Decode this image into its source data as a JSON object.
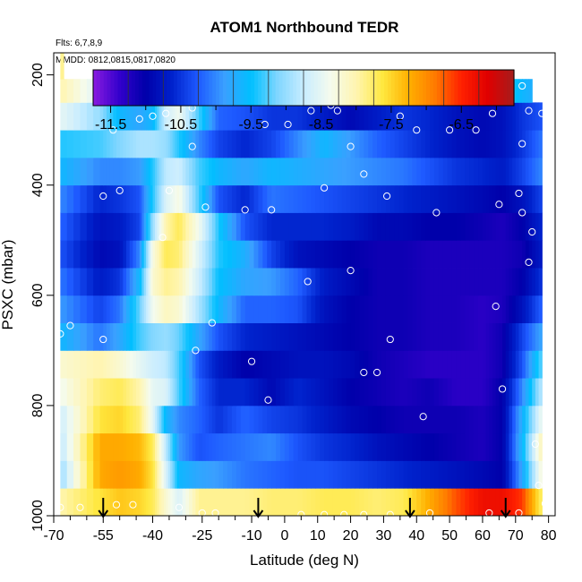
{
  "chart_data": {
    "type": "heatmap",
    "title": "ATOM1 Northbound TEDR",
    "subtitle_flights": "Flts: 6,7,8,9",
    "subtitle_dates": "MMDD: 0812,0815,0817,0820",
    "xlabel": "Latitude (deg N)",
    "ylabel": "PSXC (mbar)",
    "xlim": [
      -70,
      82
    ],
    "ylim": [
      1000,
      160
    ],
    "y_reversed": true,
    "x_ticks": [
      -70,
      -55,
      -40,
      -25,
      -10,
      0,
      10,
      20,
      30,
      40,
      50,
      60,
      70,
      80
    ],
    "x_tick_labels": [
      "-70",
      "-55",
      "-40",
      "-25",
      "-10",
      "0",
      "10",
      "20",
      "30",
      "40",
      "50",
      "60",
      "70",
      "80"
    ],
    "x_minor_ticks": [
      -65,
      -60,
      -50,
      -45,
      -35,
      -30,
      -20,
      -15,
      -5,
      5,
      15,
      25,
      35,
      45,
      55,
      65,
      75
    ],
    "y_ticks": [
      200,
      400,
      600,
      800,
      1000
    ],
    "y_tick_labels": [
      "200",
      "400",
      "600",
      "800",
      "1000"
    ],
    "colorbar": {
      "range": [
        -11.75,
        -5.75
      ],
      "ticks": [
        -11.5,
        -10.5,
        -9.5,
        -8.5,
        -7.5,
        -6.5
      ],
      "tick_labels": [
        "-11.5",
        "-10.5",
        "-9.5",
        "-8.5",
        "-7.5",
        "-6.5"
      ],
      "minor_ticks": [
        -11,
        -10,
        -9,
        -8,
        -7,
        -6
      ],
      "colors": [
        "#8a1be0",
        "#3300cc",
        "#0000aa",
        "#0022cc",
        "#1e5aff",
        "#3aa0ff",
        "#00bfff",
        "#7fd6ff",
        "#c8ecff",
        "#f4fbee",
        "#fff5b0",
        "#ffe840",
        "#ffb000",
        "#ff7a00",
        "#ff2000",
        "#e00000",
        "#a51d1d"
      ]
    },
    "levels": [
      975,
      925,
      875,
      825,
      775,
      725,
      675,
      625,
      575,
      525,
      475,
      425,
      375,
      325,
      275,
      225,
      190
    ],
    "x_grid": [
      -68,
      -56,
      -50,
      -44,
      -40,
      -36,
      -32,
      -26,
      -20,
      -12,
      -4,
      4,
      12,
      20,
      28,
      36,
      44,
      52,
      60,
      66,
      72,
      78
    ],
    "z": [
      [
        -8.0,
        -7.6,
        -7.4,
        -7.5,
        -7.7,
        -8.2,
        -8.6,
        -7.9,
        -7.9,
        -7.9,
        -7.8,
        -7.8,
        -7.7,
        -7.7,
        -7.8,
        -7.7,
        -7.2,
        -6.7,
        -6.3,
        -6.3,
        -6.6,
        -7.8
      ],
      [
        -9.0,
        -7.2,
        -7.1,
        -7.2,
        -7.6,
        -8.6,
        -9.6,
        -9.8,
        -9.9,
        -10.1,
        -10.2,
        -10.3,
        -10.3,
        -10.4,
        -10.5,
        -10.6,
        -10.7,
        -10.8,
        -10.9,
        -11.0,
        -9.8,
        -8.2
      ],
      [
        -8.8,
        -7.2,
        -7.2,
        -7.3,
        -7.7,
        -8.8,
        -9.9,
        -10.3,
        -10.2,
        -10.1,
        -10.0,
        -10.3,
        -10.5,
        -10.6,
        -10.8,
        -10.9,
        -11.0,
        -11.1,
        -11.2,
        -11.0,
        -9.6,
        -8.0
      ],
      [
        -8.7,
        -7.6,
        -7.5,
        -7.8,
        -8.5,
        -9.6,
        -10.0,
        -10.2,
        -10.5,
        -10.2,
        -10.4,
        -10.5,
        -10.7,
        -10.9,
        -11.0,
        -11.1,
        -11.1,
        -11.1,
        -11.2,
        -11.0,
        -9.7,
        -8.4
      ],
      [
        -8.4,
        -7.8,
        -7.7,
        -8.0,
        -8.5,
        -8.6,
        -9.3,
        -10.2,
        -10.6,
        -10.6,
        -10.9,
        -10.6,
        -10.8,
        -11.0,
        -11.1,
        -11.2,
        -11.1,
        -11.3,
        -11.3,
        -11.0,
        -10.0,
        -8.8
      ],
      [
        -8.2,
        -8.0,
        -8.2,
        -8.5,
        -8.7,
        -8.8,
        -9.3,
        -10.3,
        -10.7,
        -11.0,
        -10.9,
        -10.8,
        -10.8,
        -10.9,
        -11.1,
        -11.2,
        -11.3,
        -11.3,
        -11.3,
        -11.1,
        -10.3,
        -9.2
      ],
      [
        -9.6,
        -10.1,
        -9.8,
        -9.3,
        -9.1,
        -9.0,
        -9.2,
        -9.8,
        -10.3,
        -10.6,
        -10.7,
        -10.8,
        -10.9,
        -11.0,
        -11.1,
        -11.1,
        -11.2,
        -11.2,
        -11.3,
        -11.1,
        -10.4,
        -9.8
      ],
      [
        -9.9,
        -10.4,
        -10.1,
        -9.2,
        -8.4,
        -8.1,
        -8.2,
        -8.9,
        -9.6,
        -10.2,
        -10.2,
        -10.3,
        -10.8,
        -11.0,
        -11.1,
        -11.1,
        -11.2,
        -11.2,
        -11.3,
        -11.2,
        -10.8,
        -10.2
      ],
      [
        -10.1,
        -10.7,
        -10.5,
        -9.6,
        -8.2,
        -7.9,
        -8.0,
        -8.7,
        -9.5,
        -9.8,
        -9.9,
        -10.2,
        -10.7,
        -10.9,
        -11.1,
        -11.1,
        -11.2,
        -11.2,
        -11.2,
        -11.2,
        -11.0,
        -10.5
      ],
      [
        -10.3,
        -10.9,
        -10.8,
        -10.0,
        -8.3,
        -7.7,
        -7.8,
        -8.6,
        -9.4,
        -9.7,
        -10.4,
        -10.8,
        -10.9,
        -11.0,
        -11.1,
        -11.1,
        -11.2,
        -11.2,
        -11.2,
        -11.2,
        -11.1,
        -10.7
      ],
      [
        -10.2,
        -10.8,
        -10.7,
        -10.4,
        -9.0,
        -8.0,
        -7.7,
        -8.4,
        -9.4,
        -10.3,
        -10.6,
        -10.6,
        -10.6,
        -10.7,
        -10.9,
        -10.9,
        -11.0,
        -11.0,
        -11.1,
        -11.2,
        -11.0,
        -10.6
      ],
      [
        -10.0,
        -10.6,
        -10.5,
        -10.3,
        -9.4,
        -8.6,
        -8.3,
        -9.3,
        -10.3,
        -10.6,
        -10.1,
        -10.2,
        -10.3,
        -10.4,
        -10.5,
        -10.6,
        -10.7,
        -10.8,
        -10.9,
        -11.0,
        -10.8,
        -10.4
      ],
      [
        -9.6,
        -10.0,
        -10.0,
        -9.9,
        -9.4,
        -8.8,
        -8.7,
        -9.3,
        -9.6,
        -9.8,
        -9.6,
        -9.7,
        -9.8,
        -9.9,
        -10.0,
        -10.1,
        -10.3,
        -10.5,
        -10.6,
        -10.7,
        -10.4,
        -10.0
      ],
      [
        -9.4,
        -9.3,
        -9.1,
        -8.9,
        -8.9,
        -9.0,
        -9.4,
        -10.0,
        -10.4,
        -10.6,
        -10.4,
        -10.0,
        -9.6,
        -9.9,
        -10.2,
        -10.4,
        -10.6,
        -10.8,
        -10.9,
        -10.8,
        -10.5,
        -10.1
      ],
      [
        -8.5,
        -9.0,
        -9.6,
        -9.8,
        -9.6,
        -8.7,
        -8.4,
        -9.3,
        -10.2,
        -10.3,
        -10.5,
        -10.5,
        -10.7,
        -10.9,
        -10.7,
        -10.5,
        -10.6,
        -10.8,
        -10.9,
        -10.8,
        -10.5,
        -10.3
      ],
      [
        -8.0,
        -8.6,
        -9.5,
        -9.8,
        -9.2,
        -7.4,
        -7.0,
        -8.1,
        -8.4,
        -8.4,
        -8.4,
        -8.4,
        -8.5,
        -8.6,
        -8.0,
        -7.4,
        -7.6,
        -8.0,
        -8.7,
        -9.2,
        -9.6,
        -9.8
      ],
      [
        -7.9,
        -7.9,
        -7.9,
        -7.9,
        -7.9,
        -7.9,
        -7.9,
        -7.9,
        -7.9,
        -7.9,
        -7.9,
        -7.9,
        -7.9,
        -7.9,
        -7.9,
        -7.9,
        -7.9,
        -7.9,
        -7.9,
        -7.9,
        -7.9,
        -7.9
      ]
    ],
    "point_markers": [
      [
        -68,
        985
      ],
      [
        -62,
        985
      ],
      [
        -51,
        980
      ],
      [
        -46,
        980
      ],
      [
        -32,
        985
      ],
      [
        -25,
        995
      ],
      [
        -21,
        995
      ],
      [
        5,
        998
      ],
      [
        12,
        998
      ],
      [
        18,
        998
      ],
      [
        24,
        998
      ],
      [
        32,
        998
      ],
      [
        44,
        995
      ],
      [
        62,
        995
      ],
      [
        71,
        995
      ],
      [
        79,
        978
      ],
      [
        -68,
        670
      ],
      [
        -65,
        655
      ],
      [
        -55,
        680
      ],
      [
        -27,
        700
      ],
      [
        -22,
        650
      ],
      [
        -10,
        720
      ],
      [
        -5,
        790
      ],
      [
        7,
        575
      ],
      [
        20,
        555
      ],
      [
        32,
        680
      ],
      [
        28,
        740
      ],
      [
        24,
        740
      ],
      [
        42,
        820
      ],
      [
        64,
        620
      ],
      [
        66,
        770
      ],
      [
        76,
        870
      ],
      [
        77,
        945
      ],
      [
        74,
        540
      ],
      [
        75,
        485
      ],
      [
        72,
        450
      ],
      [
        71,
        415
      ],
      [
        65,
        435
      ],
      [
        80,
        400
      ],
      [
        -55,
        420
      ],
      [
        -50,
        410
      ],
      [
        -37,
        495
      ],
      [
        -35,
        410
      ],
      [
        -24,
        440
      ],
      [
        -12,
        445
      ],
      [
        -4,
        445
      ],
      [
        12,
        405
      ],
      [
        8,
        265
      ],
      [
        21,
        250
      ],
      [
        24,
        380
      ],
      [
        27,
        230
      ],
      [
        31,
        420
      ],
      [
        35,
        275
      ],
      [
        40,
        300
      ],
      [
        46,
        450
      ],
      [
        50,
        300
      ],
      [
        58,
        300
      ],
      [
        63,
        270
      ],
      [
        72,
        220
      ],
      [
        72,
        325
      ],
      [
        74,
        265
      ],
      [
        78,
        270
      ],
      [
        -52,
        300
      ],
      [
        -44,
        280
      ],
      [
        -40,
        275
      ],
      [
        -36,
        270
      ],
      [
        -32,
        250
      ],
      [
        -28,
        330
      ],
      [
        -24,
        240
      ],
      [
        -20,
        235
      ],
      [
        -17,
        245
      ],
      [
        -6,
        290
      ],
      [
        1,
        290
      ],
      [
        14,
        255
      ],
      [
        16,
        265
      ],
      [
        20,
        330
      ],
      [
        -28,
        260
      ]
    ],
    "flight_arrows_lat": [
      -55,
      -8,
      38,
      67
    ],
    "ylabel_range_note": ""
  }
}
